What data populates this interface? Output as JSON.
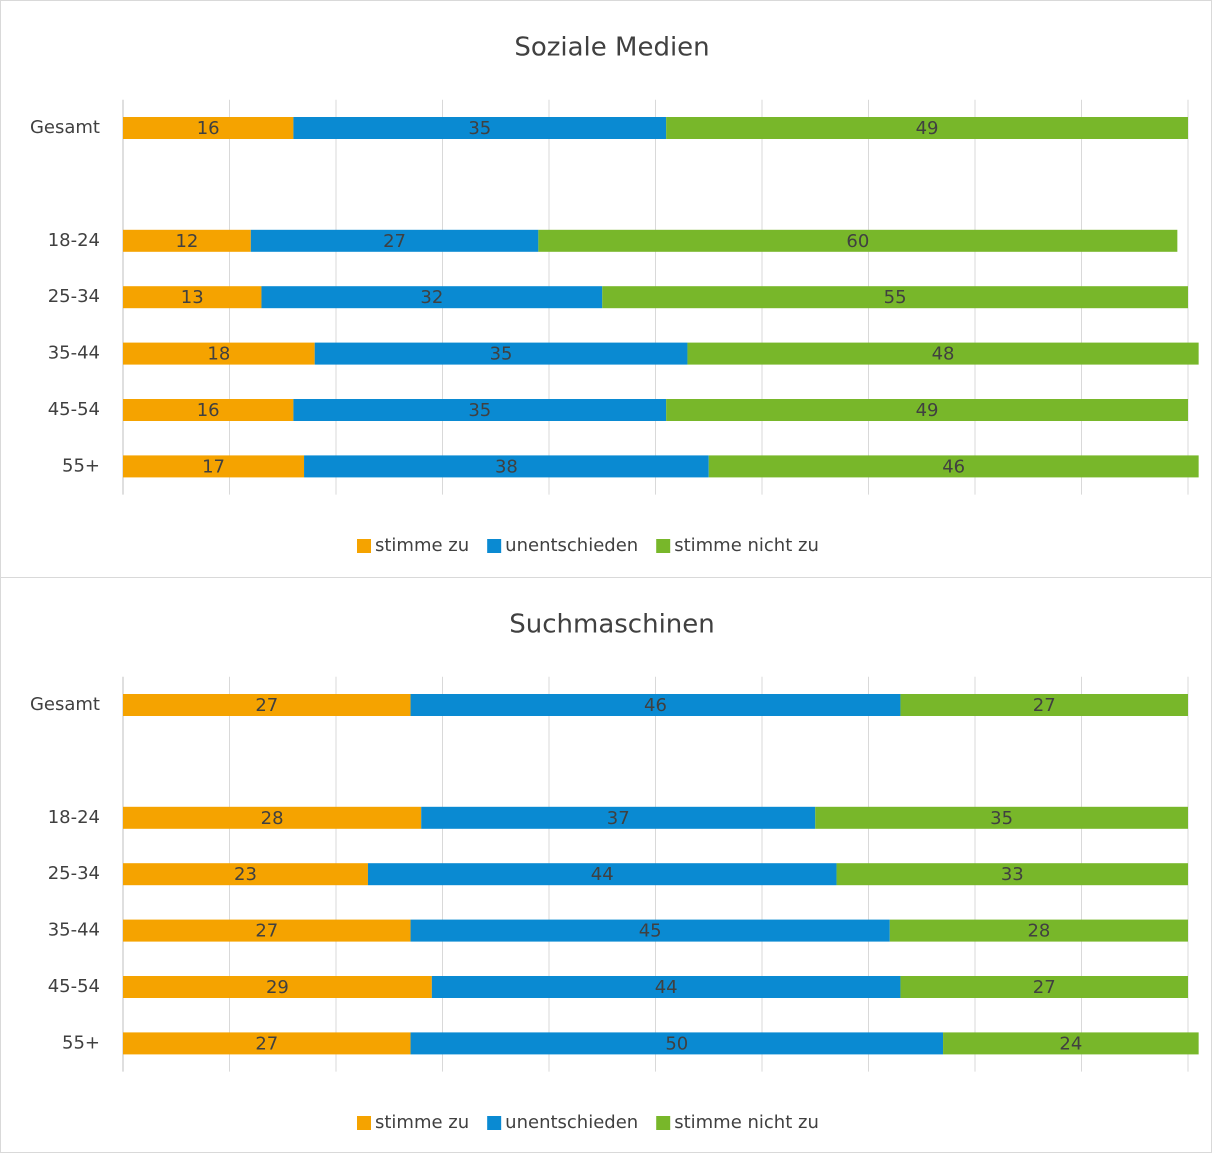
{
  "chart_data": [
    {
      "type": "bar",
      "stacked": true,
      "title": "Soziale Medien",
      "categories": [
        "Gesamt",
        null,
        "18-24",
        "25-34",
        "35-44",
        "45-54",
        "55+"
      ],
      "series": [
        {
          "name": "stimme zu",
          "color": "#f5a300",
          "values": [
            16,
            null,
            12,
            13,
            18,
            16,
            17
          ]
        },
        {
          "name": "unentschieden",
          "color": "#0a8ad2",
          "values": [
            35,
            null,
            27,
            32,
            35,
            35,
            38
          ]
        },
        {
          "name": "stimme nicht zu",
          "color": "#78b72a",
          "values": [
            49,
            null,
            60,
            55,
            48,
            49,
            46
          ]
        }
      ],
      "xlim": [
        0,
        100
      ],
      "xticks": [
        0,
        10,
        20,
        30,
        40,
        50,
        60,
        70,
        80,
        90,
        100
      ],
      "grid": true,
      "legend": "bottom"
    },
    {
      "type": "bar",
      "stacked": true,
      "title": "Suchmaschinen",
      "categories": [
        "Gesamt",
        null,
        "18-24",
        "25-34",
        "35-44",
        "45-54",
        "55+"
      ],
      "series": [
        {
          "name": "stimme zu",
          "color": "#f5a300",
          "values": [
            27,
            null,
            28,
            23,
            27,
            29,
            27
          ]
        },
        {
          "name": "unentschieden",
          "color": "#0a8ad2",
          "values": [
            46,
            null,
            37,
            44,
            45,
            44,
            50
          ]
        },
        {
          "name": "stimme nicht zu",
          "color": "#78b72a",
          "values": [
            27,
            null,
            35,
            33,
            28,
            27,
            24
          ]
        }
      ],
      "xlim": [
        0,
        100
      ],
      "xticks": [
        0,
        10,
        20,
        30,
        40,
        50,
        60,
        70,
        80,
        90,
        100
      ],
      "grid": true,
      "legend": "bottom"
    }
  ]
}
